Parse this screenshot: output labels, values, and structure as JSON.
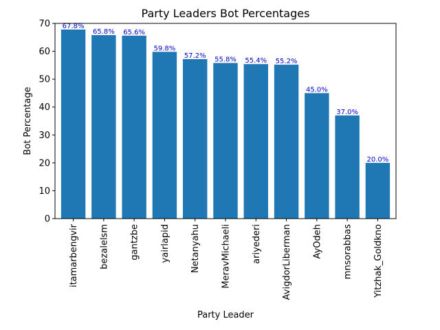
{
  "chart_data": {
    "type": "bar",
    "title": "Party Leaders Bot Percentages",
    "xlabel": "Party Leader",
    "ylabel": "Bot Percentage",
    "categories": [
      "itamarbengvir",
      "bezalelsm",
      "gantzbe",
      "yairlapid",
      "Netanyahu",
      "MeravMichaeli",
      "ariyederi",
      "AvigdorLiberman",
      "AyOdeh",
      "mnsorabbas",
      "Yitzhak_Goldkno"
    ],
    "values": [
      67.8,
      65.8,
      65.6,
      59.8,
      57.2,
      55.8,
      55.4,
      55.2,
      45.0,
      37.0,
      20.0
    ],
    "data_labels": [
      "67.8%",
      "65.8%",
      "65.6%",
      "59.8%",
      "57.2%",
      "55.8%",
      "55.4%",
      "55.2%",
      "45.0%",
      "37.0%",
      "20.0%"
    ],
    "ylim": [
      0,
      70
    ],
    "yticks": [
      0,
      10,
      20,
      30,
      40,
      50,
      60,
      70
    ],
    "grid": false,
    "bar_color": "#1f77b4",
    "data_label_color": "#0000cc"
  }
}
